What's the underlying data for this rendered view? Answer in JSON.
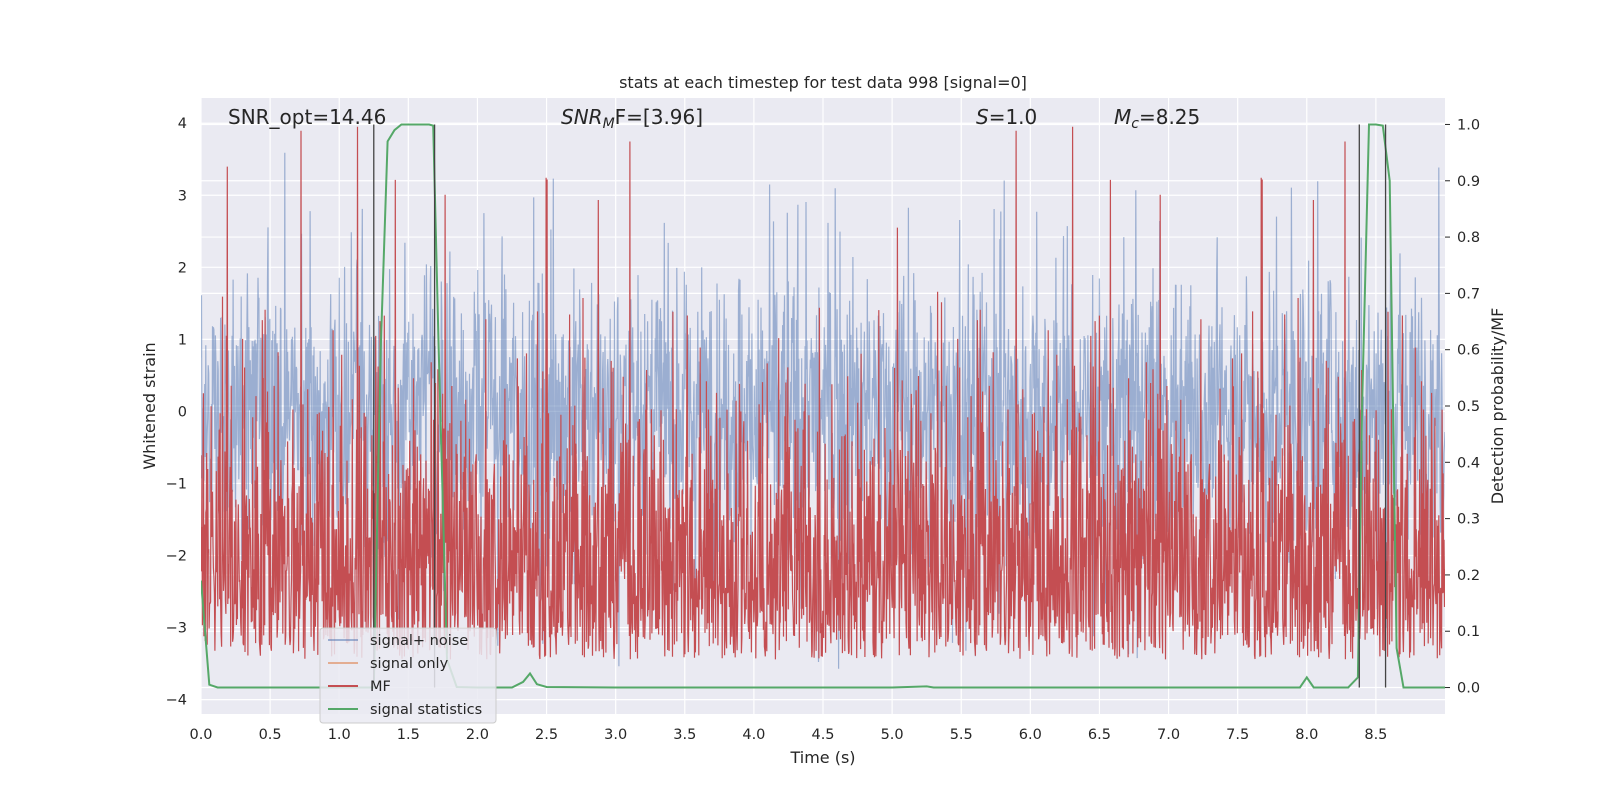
{
  "chart_data": {
    "type": "line",
    "title": "stats at each timestep for test data 998 [signal=0]",
    "xlabel": "Time (s)",
    "ylabel": "Whitened strain",
    "y2label": "Detection probability/MF",
    "xlim": [
      0.0,
      9.0
    ],
    "ylim": [
      -4.2,
      4.35
    ],
    "y2lim": [
      -0.047,
      1.047
    ],
    "grid": true,
    "legend_position": "lower-left",
    "x_ticks": [
      "0.0",
      "0.5",
      "1.0",
      "1.5",
      "2.0",
      "2.5",
      "3.0",
      "3.5",
      "4.0",
      "4.5",
      "5.0",
      "5.5",
      "6.0",
      "6.5",
      "7.0",
      "7.5",
      "8.0",
      "8.5"
    ],
    "y_ticks": [
      "−4",
      "−3",
      "−2",
      "−1",
      "0",
      "1",
      "2",
      "3",
      "4"
    ],
    "y2_ticks": [
      "0.0",
      "0.1",
      "0.2",
      "0.3",
      "0.4",
      "0.5",
      "0.6",
      "0.7",
      "0.8",
      "0.9",
      "1.0"
    ],
    "annotations": {
      "snr_opt": "SNR_opt=14.46",
      "snr_mf_name": "SNR",
      "snr_mf_sub": "M",
      "snr_mf_rest": "F=[3.96]",
      "s_name": "S",
      "s_value": "=1.0",
      "mc_name": "M",
      "mc_sub": "c",
      "mc_value": "=8.25"
    },
    "series": [
      {
        "name": "signal+ noise",
        "color": "#4c72b0",
        "description_range": [
          -3.6,
          3.6
        ],
        "typical_envelope": [
          -2.2,
          2.3
        ]
      },
      {
        "name": "signal only",
        "color": "#dd8452",
        "values": []
      },
      {
        "name": "MF",
        "color": "#c44e52",
        "typical_range": [
          0.0,
          0.85
        ],
        "peak": 1.0
      },
      {
        "name": "signal statistics",
        "color": "#55a868",
        "axis": "right",
        "x": [
          0.0,
          0.06,
          0.12,
          0.5,
          1.0,
          1.25,
          1.3,
          1.35,
          1.4,
          1.45,
          1.55,
          1.6,
          1.65,
          1.68,
          1.72,
          1.78,
          1.85,
          2.0,
          2.25,
          2.33,
          2.38,
          2.43,
          2.5,
          3.0,
          5.0,
          5.25,
          5.3,
          6.0,
          7.95,
          8.0,
          8.05,
          8.3,
          8.37,
          8.4,
          8.45,
          8.5,
          8.55,
          8.6,
          8.65,
          8.7,
          9.0
        ],
        "values": [
          0.19,
          0.005,
          0.0,
          0.0,
          0.0,
          0.0,
          0.6,
          0.97,
          0.99,
          1.0,
          1.0,
          1.0,
          1.0,
          0.998,
          0.6,
          0.05,
          0.001,
          0.0,
          0.0,
          0.01,
          0.025,
          0.006,
          0.001,
          0.0,
          0.0,
          0.002,
          0.0,
          0.0,
          0.0,
          0.018,
          0.0,
          0.0,
          0.018,
          0.5,
          1.0,
          1.0,
          0.998,
          0.9,
          0.07,
          0.0,
          0.0
        ]
      }
    ],
    "vertical_markers_x": [
      1.25,
      1.69,
      8.38,
      8.57
    ]
  }
}
